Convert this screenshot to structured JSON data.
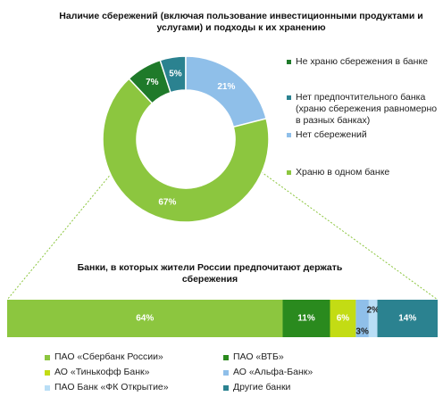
{
  "chart_data": [
    {
      "type": "donut",
      "title": "Наличие сбережений (включая пользование инвестиционными продуктами и услугами) и подходы к их хранению",
      "categories": [
        "Не храню сбережения в банке",
        "Нет предпочтительного банка (храню сбережения равномерно в разных банках)",
        "Нет сбережений",
        "Храню в одном банке"
      ],
      "values": [
        7,
        5,
        21,
        67
      ],
      "value_labels": [
        "7%",
        "5%",
        "21%",
        "67%"
      ],
      "colors": [
        "#1f7a2a",
        "#2b8290",
        "#8fbfe9",
        "#8cc63f"
      ]
    },
    {
      "type": "stacked-bar",
      "title": "Банки, в которых жители России предпочитают держать сбережения",
      "xlim": [
        0,
        100
      ],
      "series": [
        {
          "name": "ПАО «Сбербанк России»",
          "color": "#8cc63f",
          "values": [
            64
          ],
          "value_labels": [
            "64%"
          ]
        },
        {
          "name": "ПАО «ВТБ»",
          "color": "#2a8a1e",
          "values": [
            11
          ],
          "value_labels": [
            "11%"
          ]
        },
        {
          "name": "АО «Тинькофф Банк»",
          "color": "#c3dc14",
          "values": [
            6
          ],
          "value_labels": [
            "6%"
          ]
        },
        {
          "name": "АО «Альфа-Банк»",
          "color": "#8fbfe9",
          "values": [
            3
          ],
          "value_labels": [
            "3%"
          ]
        },
        {
          "name": "ПАО Банк «ФК Открытие»",
          "color": "#b9def6",
          "values": [
            2
          ],
          "value_labels": [
            "2%"
          ]
        },
        {
          "name": "Другие банки",
          "color": "#2b8290",
          "values": [
            14
          ],
          "value_labels": [
            "14%"
          ]
        }
      ]
    }
  ]
}
